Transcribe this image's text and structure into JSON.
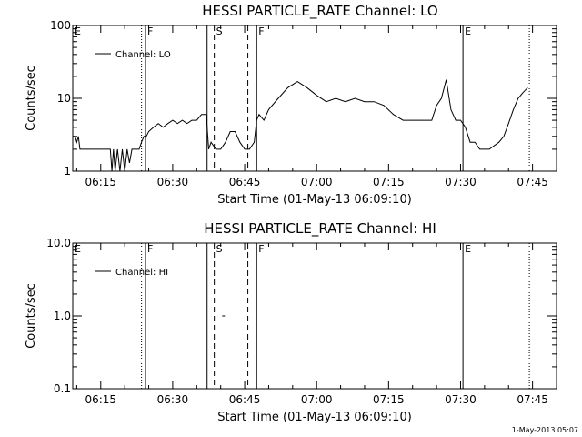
{
  "footer": {
    "stamp": "1-May-2013 05:07"
  },
  "chart_data": [
    {
      "type": "line",
      "title": "HESSI PARTICLE_RATE Channel: LO",
      "xlabel": "Start Time (01-May-13 06:09:10)",
      "ylabel": "Counts/sec",
      "yscale": "log",
      "ylim": [
        1,
        100
      ],
      "xlim": [
        "06:09:10",
        "07:50:00"
      ],
      "xticks": [
        "06:15",
        "06:30",
        "06:45",
        "07:00",
        "07:15",
        "07:30",
        "07:45"
      ],
      "yticks": [
        "1",
        "10",
        "100"
      ],
      "legend": "top-left",
      "series": [
        {
          "name": "Channel: LO",
          "points": [
            [
              "06:09:10",
              3
            ],
            [
              "06:09:40",
              3
            ],
            [
              "06:10:00",
              2.5
            ],
            [
              "06:10:20",
              3
            ],
            [
              "06:10:40",
              2
            ],
            [
              "06:11:00",
              2
            ],
            [
              "06:13:00",
              2
            ],
            [
              "06:15:00",
              2
            ],
            [
              "06:17:00",
              2
            ],
            [
              "06:17:20",
              1
            ],
            [
              "06:17:40",
              2
            ],
            [
              "06:18:00",
              1
            ],
            [
              "06:18:30",
              2
            ],
            [
              "06:19:00",
              1
            ],
            [
              "06:19:30",
              2
            ],
            [
              "06:20:00",
              1
            ],
            [
              "06:20:30",
              2
            ],
            [
              "06:21:00",
              1.3
            ],
            [
              "06:21:30",
              2
            ],
            [
              "06:22:00",
              2
            ],
            [
              "06:23:00",
              2
            ],
            [
              "06:23:30",
              2.5
            ],
            [
              "06:24:00",
              3
            ],
            [
              "06:24:30",
              3
            ],
            [
              "06:25:00",
              3.5
            ],
            [
              "06:26:00",
              4
            ],
            [
              "06:27:00",
              4.5
            ],
            [
              "06:28:00",
              4
            ],
            [
              "06:29:00",
              4.5
            ],
            [
              "06:30:00",
              5
            ],
            [
              "06:31:00",
              4.5
            ],
            [
              "06:32:00",
              5
            ],
            [
              "06:33:00",
              4.5
            ],
            [
              "06:34:00",
              5
            ],
            [
              "06:35:00",
              5
            ],
            [
              "06:36:00",
              6
            ],
            [
              "06:37:00",
              6
            ],
            [
              "06:37:30",
              2
            ],
            [
              "06:38:00",
              2.5
            ],
            [
              "06:39:00",
              2
            ],
            [
              "06:40:00",
              2
            ],
            [
              "06:41:00",
              2.5
            ],
            [
              "06:42:00",
              3.5
            ],
            [
              "06:43:00",
              3.5
            ],
            [
              "06:44:00",
              2.5
            ],
            [
              "06:45:00",
              2
            ],
            [
              "06:46:00",
              2
            ],
            [
              "06:47:00",
              2.5
            ],
            [
              "06:47:30",
              5
            ],
            [
              "06:48:00",
              6
            ],
            [
              "06:49:00",
              5
            ],
            [
              "06:50:00",
              7
            ],
            [
              "06:52:00",
              10
            ],
            [
              "06:54:00",
              14
            ],
            [
              "06:56:00",
              17
            ],
            [
              "06:58:00",
              14
            ],
            [
              "07:00:00",
              11
            ],
            [
              "07:02:00",
              9
            ],
            [
              "07:04:00",
              10
            ],
            [
              "07:06:00",
              9
            ],
            [
              "07:08:00",
              10
            ],
            [
              "07:10:00",
              9
            ],
            [
              "07:12:00",
              9
            ],
            [
              "07:14:00",
              8
            ],
            [
              "07:16:00",
              6
            ],
            [
              "07:18:00",
              5
            ],
            [
              "07:20:00",
              5
            ],
            [
              "07:22:00",
              5
            ],
            [
              "07:24:00",
              5
            ],
            [
              "07:25:00",
              8
            ],
            [
              "07:26:00",
              10
            ],
            [
              "07:27:00",
              18
            ],
            [
              "07:28:00",
              7
            ],
            [
              "07:29:00",
              5
            ],
            [
              "07:30:00",
              5
            ],
            [
              "07:31:00",
              4
            ],
            [
              "07:32:00",
              2.5
            ],
            [
              "07:33:00",
              2.5
            ],
            [
              "07:34:00",
              2
            ],
            [
              "07:36:00",
              2
            ],
            [
              "07:38:00",
              2.5
            ],
            [
              "07:39:00",
              3
            ],
            [
              "07:40:00",
              4.5
            ],
            [
              "07:41:00",
              7
            ],
            [
              "07:42:00",
              10
            ],
            [
              "07:43:00",
              12
            ],
            [
              "07:44:00",
              14
            ]
          ]
        }
      ]
    },
    {
      "type": "line",
      "title": "HESSI PARTICLE_RATE Channel: HI",
      "xlabel": "Start Time (01-May-13 06:09:10)",
      "ylabel": "Counts/sec",
      "yscale": "log",
      "ylim": [
        0.1,
        10
      ],
      "xlim": [
        "06:09:10",
        "07:50:00"
      ],
      "xticks": [
        "06:15",
        "06:30",
        "06:45",
        "07:00",
        "07:15",
        "07:30",
        "07:45"
      ],
      "yticks": [
        "0.1",
        "1.0",
        "10.0"
      ],
      "legend": "top-left",
      "series": [
        {
          "name": "Channel: HI",
          "points": [
            [
              "06:40:30",
              1.0
            ]
          ]
        }
      ]
    }
  ],
  "event_markers": [
    {
      "time": "06:09:10",
      "label": "E",
      "style": "solid"
    },
    {
      "time": "06:23:30",
      "label": "",
      "style": "dotted"
    },
    {
      "time": "06:24:20",
      "label": "F",
      "style": "solid"
    },
    {
      "time": "06:37:10",
      "label": "",
      "style": "solid"
    },
    {
      "time": "06:38:40",
      "label": "S",
      "style": "dashed"
    },
    {
      "time": "06:45:40",
      "label": "",
      "style": "dashed"
    },
    {
      "time": "06:47:30",
      "label": "F",
      "style": "solid"
    },
    {
      "time": "07:30:30",
      "label": "E",
      "style": "solid"
    },
    {
      "time": "07:44:20",
      "label": "",
      "style": "dotted"
    }
  ]
}
